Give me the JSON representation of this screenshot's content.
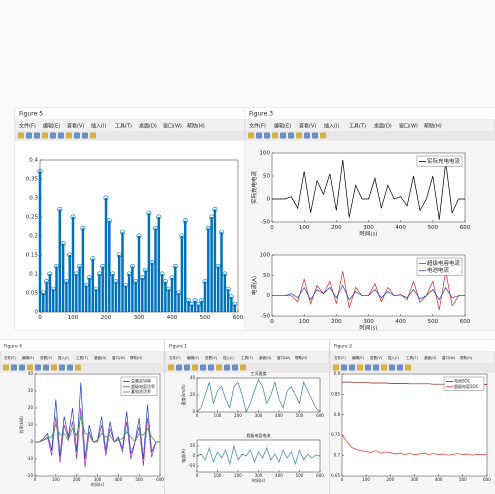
{
  "windows": [
    {
      "title": "Figure 5"
    },
    {
      "title": "Figure 3"
    },
    {
      "title": "Figure 4"
    },
    {
      "title": "Figure 1"
    },
    {
      "title": "Figure 2"
    }
  ],
  "menu": [
    "文件(F)",
    "编辑(E)",
    "查看(V)",
    "插入(I)",
    "工具(T)",
    "桌面(D)",
    "窗口(W)",
    "帮助(H)"
  ],
  "chart_data": [
    {
      "type": "stem",
      "color": "#0072bd",
      "x": [
        0,
        10,
        20,
        30,
        40,
        50,
        60,
        70,
        80,
        90,
        100,
        110,
        120,
        130,
        140,
        150,
        160,
        170,
        180,
        190,
        200,
        210,
        220,
        230,
        240,
        250,
        260,
        270,
        280,
        290,
        300,
        310,
        320,
        330,
        340,
        350,
        360,
        370,
        380,
        390,
        400,
        410,
        420,
        430,
        440,
        450,
        460,
        470,
        480,
        490,
        500,
        510,
        520,
        530,
        540,
        550,
        560,
        570,
        580,
        590
      ],
      "values": [
        0.37,
        0.05,
        0.08,
        0.1,
        0.06,
        0.12,
        0.27,
        0.18,
        0.08,
        0.15,
        0.25,
        0.1,
        0.12,
        0.22,
        0.07,
        0.09,
        0.14,
        0.06,
        0.1,
        0.12,
        0.3,
        0.24,
        0.1,
        0.08,
        0.15,
        0.21,
        0.07,
        0.1,
        0.12,
        0.08,
        0.2,
        0.09,
        0.11,
        0.26,
        0.13,
        0.22,
        0.25,
        0.1,
        0.08,
        0.06,
        0.09,
        0.12,
        0.05,
        0.2,
        0.24,
        0.03,
        0.02,
        0.03,
        0.02,
        0.03,
        0.08,
        0.22,
        0.25,
        0.27,
        0.12,
        0.21,
        0.1,
        0.06,
        0.04,
        0.02
      ],
      "xlim": [
        0,
        600
      ],
      "xticks": [
        0,
        100,
        200,
        300,
        400,
        500,
        600
      ],
      "ylim": [
        0,
        0.4
      ],
      "yticks": [
        0,
        0.05,
        0.1,
        0.15,
        0.2,
        0.25,
        0.3,
        0.35,
        0.4
      ],
      "grid": false
    },
    {
      "type": "line",
      "ylabel": "实际充电电流",
      "xlabel": "时间(s)",
      "legend": "upper right",
      "x": [
        0,
        20,
        40,
        60,
        80,
        100,
        120,
        140,
        160,
        180,
        200,
        220,
        240,
        260,
        280,
        300,
        320,
        340,
        360,
        380,
        400,
        420,
        440,
        460,
        480,
        500,
        520,
        540,
        560,
        580,
        600
      ],
      "series": [
        {
          "name": "实际充电电流",
          "color": "#000000",
          "values": [
            0,
            0,
            0,
            5,
            -20,
            60,
            -30,
            40,
            10,
            55,
            -25,
            85,
            -40,
            30,
            0,
            0,
            45,
            -20,
            30,
            0,
            5,
            -15,
            50,
            -25,
            0,
            50,
            -45,
            80,
            -30,
            0,
            0
          ]
        }
      ],
      "xlim": [
        0,
        600
      ],
      "xticks": [
        0,
        100,
        200,
        300,
        400,
        500,
        600
      ],
      "ylim": [
        -50,
        100
      ],
      "yticks": [
        -50,
        0,
        50,
        100
      ],
      "grid": false
    },
    {
      "type": "line",
      "ylabel": "电流(A)",
      "xlabel": "时间(s)",
      "legend": "upper right",
      "x": [
        0,
        20,
        40,
        60,
        80,
        100,
        120,
        140,
        160,
        180,
        200,
        220,
        240,
        260,
        280,
        300,
        320,
        340,
        360,
        380,
        400,
        420,
        440,
        460,
        480,
        500,
        520,
        540,
        560,
        580,
        600
      ],
      "series": [
        {
          "name": "超级电容电流",
          "color": "#d62728",
          "values": [
            0,
            0,
            0,
            0,
            -15,
            40,
            -20,
            25,
            5,
            35,
            -20,
            60,
            -30,
            20,
            0,
            0,
            30,
            -15,
            20,
            0,
            3,
            -10,
            35,
            -17,
            0,
            35,
            -35,
            60,
            -25,
            0,
            0
          ]
        },
        {
          "name": "电池电流",
          "color": "#1f3fbf",
          "values": [
            0,
            0,
            0,
            5,
            -5,
            20,
            -10,
            15,
            5,
            20,
            -5,
            25,
            -10,
            10,
            0,
            0,
            15,
            -5,
            10,
            0,
            2,
            -5,
            15,
            -8,
            0,
            15,
            -10,
            20,
            -5,
            0,
            0
          ]
        }
      ],
      "xlim": [
        0,
        600
      ],
      "xticks": [
        0,
        100,
        200,
        300,
        400,
        500,
        600
      ],
      "ylim": [
        -50,
        100
      ],
      "yticks": [
        -50,
        0,
        50,
        100
      ],
      "grid": false
    },
    {
      "type": "line",
      "ylabel": "功率(kW)",
      "xlabel": "时间(s)",
      "legend": "upper right",
      "x": [
        0,
        20,
        40,
        60,
        80,
        100,
        120,
        140,
        160,
        180,
        200,
        220,
        240,
        260,
        280,
        300,
        320,
        340,
        360,
        380,
        400,
        420,
        440,
        460,
        480,
        500,
        520,
        540,
        560,
        580,
        600
      ],
      "series": [
        {
          "name": "总需求功率",
          "color": "#1f3fbf",
          "values": [
            0,
            0,
            2,
            5,
            -5,
            25,
            -8,
            15,
            3,
            20,
            -6,
            35,
            -10,
            10,
            0,
            1,
            15,
            -5,
            12,
            0,
            3,
            -4,
            18,
            -7,
            0,
            14,
            -10,
            22,
            -6,
            0,
            0
          ]
        },
        {
          "name": "超级电容功率",
          "color": "#9b2fae",
          "values": [
            0,
            0,
            1,
            3,
            -8,
            15,
            -12,
            10,
            2,
            12,
            -10,
            20,
            -15,
            6,
            0,
            0,
            10,
            -8,
            8,
            0,
            2,
            -6,
            12,
            -10,
            0,
            9,
            -14,
            14,
            -9,
            0,
            0
          ]
        },
        {
          "name": "蓄电池功率",
          "color": "#2ca02c",
          "values": [
            0,
            0,
            1,
            2,
            3,
            10,
            4,
            5,
            1,
            8,
            4,
            15,
            5,
            4,
            0,
            1,
            5,
            3,
            4,
            0,
            1,
            2,
            6,
            3,
            0,
            5,
            4,
            8,
            3,
            0,
            0
          ]
        }
      ],
      "xlim": [
        0,
        600
      ],
      "xticks": [
        0,
        100,
        200,
        300,
        400,
        500,
        600
      ],
      "ylim": [
        -20,
        40
      ],
      "yticks": [
        -20,
        -10,
        0,
        10,
        20,
        30,
        40
      ],
      "grid": false
    },
    {
      "type": "line",
      "title": "工况速度",
      "ylabel": "速度(km/h)",
      "x": [
        0,
        20,
        40,
        60,
        80,
        100,
        120,
        140,
        160,
        180,
        200,
        220,
        240,
        260,
        280,
        300,
        320,
        340,
        360,
        380,
        400,
        420,
        440,
        460,
        480,
        500,
        520,
        540,
        560,
        580,
        600
      ],
      "series": [
        {
          "name": "工况速度",
          "color": "#3a7fa8",
          "values": [
            0,
            5,
            20,
            35,
            10,
            25,
            30,
            15,
            5,
            30,
            35,
            20,
            0,
            10,
            25,
            38,
            30,
            10,
            20,
            35,
            15,
            5,
            25,
            30,
            20,
            10,
            35,
            25,
            15,
            5,
            0
          ]
        }
      ],
      "xlim": [
        0,
        600
      ],
      "xticks": [
        0,
        100,
        200,
        300,
        400,
        500,
        600
      ],
      "ylim": [
        0,
        40
      ],
      "yticks": [
        0,
        20,
        40
      ],
      "grid": false
    },
    {
      "type": "line",
      "title": "超级电容电流",
      "ylabel": "电流(A)",
      "xlabel": "时间(s)",
      "x": [
        0,
        20,
        40,
        60,
        80,
        100,
        120,
        140,
        160,
        180,
        200,
        220,
        240,
        260,
        280,
        300,
        320,
        340,
        360,
        380,
        400,
        420,
        440,
        460,
        480,
        500,
        520,
        540,
        560,
        580,
        600
      ],
      "series": [
        {
          "name": "超级电容电流",
          "color": "#3a7fa8",
          "values": [
            0,
            10,
            -20,
            40,
            -30,
            20,
            -10,
            30,
            -40,
            50,
            -20,
            10,
            0,
            30,
            -30,
            20,
            -10,
            40,
            -20,
            10,
            -30,
            30,
            -10,
            20,
            -40,
            30,
            -20,
            10,
            -10,
            5,
            0
          ]
        }
      ],
      "xlim": [
        0,
        600
      ],
      "xticks": [
        0,
        100,
        200,
        300,
        400,
        500,
        600
      ],
      "ylim": [
        -80,
        80
      ],
      "yticks": [
        -50,
        0,
        50
      ],
      "grid": false
    },
    {
      "type": "line",
      "legend": "upper right",
      "x": [
        0,
        20,
        40,
        60,
        80,
        100,
        120,
        140,
        160,
        180,
        200,
        220,
        240,
        260,
        280,
        300,
        320,
        340,
        360,
        380,
        400,
        420,
        440,
        460,
        480,
        500,
        520,
        540,
        560,
        580,
        600
      ],
      "series": [
        {
          "name": "电池SOC",
          "color": "#8b1a1a",
          "values": [
            0.88,
            0.88,
            0.88,
            0.879,
            0.879,
            0.879,
            0.878,
            0.878,
            0.878,
            0.878,
            0.877,
            0.877,
            0.877,
            0.877,
            0.876,
            0.876,
            0.876,
            0.876,
            0.876,
            0.875,
            0.875,
            0.875,
            0.875,
            0.875,
            0.874,
            0.874,
            0.874,
            0.874,
            0.874,
            0.874,
            0.874
          ]
        },
        {
          "name": "超级电容SOC",
          "color": "#e0302f",
          "values": [
            0.75,
            0.735,
            0.72,
            0.715,
            0.712,
            0.71,
            0.708,
            0.712,
            0.706,
            0.709,
            0.707,
            0.704,
            0.706,
            0.703,
            0.705,
            0.702,
            0.704,
            0.706,
            0.703,
            0.705,
            0.702,
            0.704,
            0.701,
            0.703,
            0.705,
            0.702,
            0.704,
            0.701,
            0.703,
            0.702,
            0.702
          ]
        }
      ],
      "xlim": [
        0,
        600
      ],
      "xticks": [
        0,
        100,
        200,
        300,
        400,
        500,
        600
      ],
      "ylim": [
        0.65,
        0.9
      ],
      "yticks": [
        0.65,
        0.7,
        0.75,
        0.8,
        0.85,
        0.9
      ],
      "grid": false
    }
  ]
}
